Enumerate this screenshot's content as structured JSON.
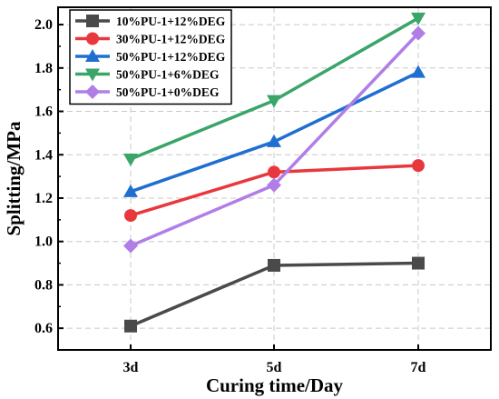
{
  "chart_data": {
    "type": "line",
    "categories": [
      "3d",
      "5d",
      "7d"
    ],
    "xlabel": "Curing time/Day",
    "ylabel": "Splitting/MPa",
    "ylim": [
      0.5,
      2.08
    ],
    "yticks": [
      0.6,
      0.8,
      1.0,
      1.2,
      1.4,
      1.6,
      1.8,
      2.0
    ],
    "ytick_labels": [
      "0.6",
      "0.8",
      "1.0",
      "1.2",
      "1.4",
      "1.6",
      "1.8",
      "2.0"
    ],
    "grid": true,
    "legend_position": "top-left",
    "series": [
      {
        "name": "10%PU-1+12%DEG",
        "values": [
          0.61,
          0.89,
          0.9
        ],
        "color": "#4a4a4a",
        "marker": "square"
      },
      {
        "name": "30%PU-1+12%DEG",
        "values": [
          1.12,
          1.32,
          1.35
        ],
        "color": "#e8383d",
        "marker": "circle"
      },
      {
        "name": "50%PU-1+12%DEG",
        "values": [
          1.23,
          1.46,
          1.78
        ],
        "color": "#1f6fd1",
        "marker": "triangle-up"
      },
      {
        "name": "50%PU-1+6%DEG",
        "values": [
          1.38,
          1.65,
          2.03
        ],
        "color": "#3aa569",
        "marker": "triangle-down"
      },
      {
        "name": "50%PU-1+0%DEG",
        "values": [
          0.98,
          1.26,
          1.96
        ],
        "color": "#b07ee6",
        "marker": "diamond"
      }
    ]
  }
}
